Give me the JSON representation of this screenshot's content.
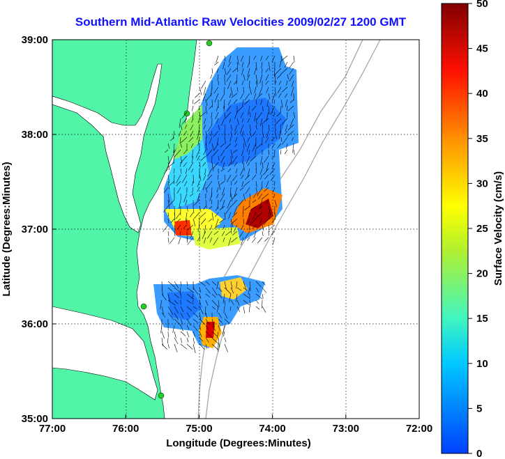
{
  "title": "Southern Mid-Atlantic Raw Velocities 2009/02/27 1200 GMT",
  "axes": {
    "xlabel": "Longitude (Degrees:Minutes)",
    "ylabel": "Latitude (Degrees:Minutes)",
    "x_ticks": [
      "77:00",
      "76:00",
      "75:00",
      "74:00",
      "73:00",
      "72:00"
    ],
    "y_ticks": [
      "39:00",
      "38:00",
      "37:00",
      "36:00",
      "35:00"
    ],
    "xlim": [
      -77,
      -72
    ],
    "ylim": [
      35,
      39
    ]
  },
  "colorbar": {
    "label": "Surface Velocity (cm/s)",
    "ticks": [
      "50",
      "45",
      "40",
      "35",
      "30",
      "25",
      "20",
      "15",
      "10",
      "5",
      "0"
    ],
    "range": [
      0,
      50
    ]
  },
  "colors": {
    "land": "#52f5a8",
    "title": "#1010ff",
    "station": "#22cc22",
    "bathymetry": "#a0a0a0"
  }
}
